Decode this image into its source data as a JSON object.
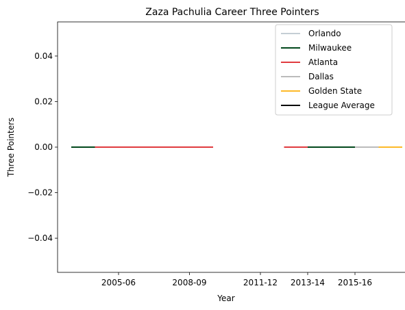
{
  "chart_data": {
    "type": "line",
    "title": "Zaza Pachulia Career Three Pointers",
    "xlabel": "Year",
    "ylabel": "Three Pointers",
    "seasons": [
      "2003-04",
      "2004-05",
      "2005-06",
      "2006-07",
      "2007-08",
      "2008-09",
      "2009-10",
      "2010-11",
      "2011-12",
      "2012-13",
      "2013-14",
      "2014-15",
      "2015-16",
      "2016-17",
      "2017-18"
    ],
    "xticks": [
      "2005-06",
      "2008-09",
      "2011-12",
      "2013-14",
      "2015-16"
    ],
    "ylim": [
      -0.055,
      0.055
    ],
    "yticks": [
      -0.04,
      -0.02,
      0.0,
      0.02,
      0.04
    ],
    "ytick_labels": [
      "−0.04",
      "−0.02",
      "0.00",
      "0.02",
      "0.04"
    ],
    "grid": false,
    "legend_position": "top-right",
    "series": [
      {
        "name": "Orlando",
        "color": "#c4ced4",
        "points": [
          {
            "x": "2003-04",
            "y": 0
          }
        ]
      },
      {
        "name": "Milwaukee",
        "color": "#00471b",
        "points": [
          {
            "x": "2003-04",
            "y": 0
          },
          {
            "x": "2004-05",
            "y": 0
          },
          {
            "x": "2013-14",
            "y": 0
          },
          {
            "x": "2014-15",
            "y": 0
          },
          {
            "x": "2015-16",
            "y": 0
          }
        ]
      },
      {
        "name": "Atlanta",
        "color": "#e03a3e",
        "points": [
          {
            "x": "2004-05",
            "y": 0
          },
          {
            "x": "2005-06",
            "y": 0
          },
          {
            "x": "2006-07",
            "y": 0
          },
          {
            "x": "2007-08",
            "y": 0
          },
          {
            "x": "2008-09",
            "y": 0
          },
          {
            "x": "2009-10",
            "y": 0
          },
          {
            "x": "2012-13",
            "y": 0
          },
          {
            "x": "2013-14",
            "y": 0
          }
        ]
      },
      {
        "name": "Dallas",
        "color": "#bbbbbb",
        "points": [
          {
            "x": "2015-16",
            "y": 0
          },
          {
            "x": "2016-17",
            "y": 0
          }
        ]
      },
      {
        "name": "Golden State",
        "color": "#fdb927",
        "points": [
          {
            "x": "2016-17",
            "y": 0
          },
          {
            "x": "2017-18",
            "y": 0
          }
        ]
      },
      {
        "name": "League Average",
        "color": "#000000",
        "points": []
      }
    ]
  }
}
